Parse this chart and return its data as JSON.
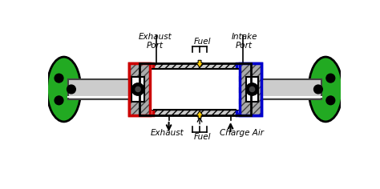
{
  "exhaust_label": "Exhaust",
  "charge_air_label": "Charge Air",
  "fuel_top_label": "Fuel",
  "fuel_bot_label": "Fuel",
  "exhaust_port_label": "Exhaust\nPort",
  "intake_port_label": "Intake\nPort",
  "gray": "#aaaaaa",
  "light_gray": "#cccccc",
  "dark_gray": "#444444",
  "red": "#cc0000",
  "red_fill": "#dd4444",
  "blue": "#0000cc",
  "blue_fill": "#4444dd",
  "yellow": "#ffcc00",
  "green": "#22aa22",
  "white": "#ffffff",
  "black": "#000000"
}
